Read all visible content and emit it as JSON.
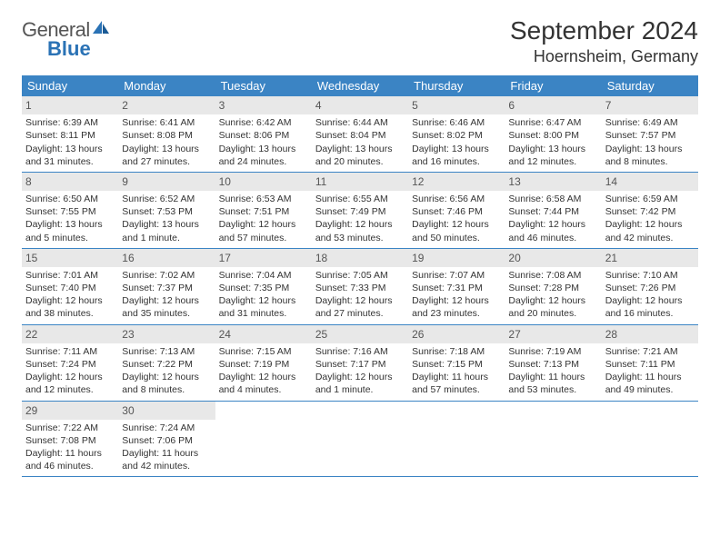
{
  "logo": {
    "general": "General",
    "blue": "Blue"
  },
  "title": "September 2024",
  "location": "Hoernsheim, Germany",
  "weekdays": [
    "Sunday",
    "Monday",
    "Tuesday",
    "Wednesday",
    "Thursday",
    "Friday",
    "Saturday"
  ],
  "colors": {
    "header_bg": "#3b84c4",
    "header_text": "#ffffff",
    "daynum_bg": "#e8e8e8",
    "logo_blue": "#2a72b5",
    "border": "#3b84c4"
  },
  "weeks": [
    [
      {
        "n": "1",
        "sr": "Sunrise: 6:39 AM",
        "ss": "Sunset: 8:11 PM",
        "d1": "Daylight: 13 hours",
        "d2": "and 31 minutes."
      },
      {
        "n": "2",
        "sr": "Sunrise: 6:41 AM",
        "ss": "Sunset: 8:08 PM",
        "d1": "Daylight: 13 hours",
        "d2": "and 27 minutes."
      },
      {
        "n": "3",
        "sr": "Sunrise: 6:42 AM",
        "ss": "Sunset: 8:06 PM",
        "d1": "Daylight: 13 hours",
        "d2": "and 24 minutes."
      },
      {
        "n": "4",
        "sr": "Sunrise: 6:44 AM",
        "ss": "Sunset: 8:04 PM",
        "d1": "Daylight: 13 hours",
        "d2": "and 20 minutes."
      },
      {
        "n": "5",
        "sr": "Sunrise: 6:46 AM",
        "ss": "Sunset: 8:02 PM",
        "d1": "Daylight: 13 hours",
        "d2": "and 16 minutes."
      },
      {
        "n": "6",
        "sr": "Sunrise: 6:47 AM",
        "ss": "Sunset: 8:00 PM",
        "d1": "Daylight: 13 hours",
        "d2": "and 12 minutes."
      },
      {
        "n": "7",
        "sr": "Sunrise: 6:49 AM",
        "ss": "Sunset: 7:57 PM",
        "d1": "Daylight: 13 hours",
        "d2": "and 8 minutes."
      }
    ],
    [
      {
        "n": "8",
        "sr": "Sunrise: 6:50 AM",
        "ss": "Sunset: 7:55 PM",
        "d1": "Daylight: 13 hours",
        "d2": "and 5 minutes."
      },
      {
        "n": "9",
        "sr": "Sunrise: 6:52 AM",
        "ss": "Sunset: 7:53 PM",
        "d1": "Daylight: 13 hours",
        "d2": "and 1 minute."
      },
      {
        "n": "10",
        "sr": "Sunrise: 6:53 AM",
        "ss": "Sunset: 7:51 PM",
        "d1": "Daylight: 12 hours",
        "d2": "and 57 minutes."
      },
      {
        "n": "11",
        "sr": "Sunrise: 6:55 AM",
        "ss": "Sunset: 7:49 PM",
        "d1": "Daylight: 12 hours",
        "d2": "and 53 minutes."
      },
      {
        "n": "12",
        "sr": "Sunrise: 6:56 AM",
        "ss": "Sunset: 7:46 PM",
        "d1": "Daylight: 12 hours",
        "d2": "and 50 minutes."
      },
      {
        "n": "13",
        "sr": "Sunrise: 6:58 AM",
        "ss": "Sunset: 7:44 PM",
        "d1": "Daylight: 12 hours",
        "d2": "and 46 minutes."
      },
      {
        "n": "14",
        "sr": "Sunrise: 6:59 AM",
        "ss": "Sunset: 7:42 PM",
        "d1": "Daylight: 12 hours",
        "d2": "and 42 minutes."
      }
    ],
    [
      {
        "n": "15",
        "sr": "Sunrise: 7:01 AM",
        "ss": "Sunset: 7:40 PM",
        "d1": "Daylight: 12 hours",
        "d2": "and 38 minutes."
      },
      {
        "n": "16",
        "sr": "Sunrise: 7:02 AM",
        "ss": "Sunset: 7:37 PM",
        "d1": "Daylight: 12 hours",
        "d2": "and 35 minutes."
      },
      {
        "n": "17",
        "sr": "Sunrise: 7:04 AM",
        "ss": "Sunset: 7:35 PM",
        "d1": "Daylight: 12 hours",
        "d2": "and 31 minutes."
      },
      {
        "n": "18",
        "sr": "Sunrise: 7:05 AM",
        "ss": "Sunset: 7:33 PM",
        "d1": "Daylight: 12 hours",
        "d2": "and 27 minutes."
      },
      {
        "n": "19",
        "sr": "Sunrise: 7:07 AM",
        "ss": "Sunset: 7:31 PM",
        "d1": "Daylight: 12 hours",
        "d2": "and 23 minutes."
      },
      {
        "n": "20",
        "sr": "Sunrise: 7:08 AM",
        "ss": "Sunset: 7:28 PM",
        "d1": "Daylight: 12 hours",
        "d2": "and 20 minutes."
      },
      {
        "n": "21",
        "sr": "Sunrise: 7:10 AM",
        "ss": "Sunset: 7:26 PM",
        "d1": "Daylight: 12 hours",
        "d2": "and 16 minutes."
      }
    ],
    [
      {
        "n": "22",
        "sr": "Sunrise: 7:11 AM",
        "ss": "Sunset: 7:24 PM",
        "d1": "Daylight: 12 hours",
        "d2": "and 12 minutes."
      },
      {
        "n": "23",
        "sr": "Sunrise: 7:13 AM",
        "ss": "Sunset: 7:22 PM",
        "d1": "Daylight: 12 hours",
        "d2": "and 8 minutes."
      },
      {
        "n": "24",
        "sr": "Sunrise: 7:15 AM",
        "ss": "Sunset: 7:19 PM",
        "d1": "Daylight: 12 hours",
        "d2": "and 4 minutes."
      },
      {
        "n": "25",
        "sr": "Sunrise: 7:16 AM",
        "ss": "Sunset: 7:17 PM",
        "d1": "Daylight: 12 hours",
        "d2": "and 1 minute."
      },
      {
        "n": "26",
        "sr": "Sunrise: 7:18 AM",
        "ss": "Sunset: 7:15 PM",
        "d1": "Daylight: 11 hours",
        "d2": "and 57 minutes."
      },
      {
        "n": "27",
        "sr": "Sunrise: 7:19 AM",
        "ss": "Sunset: 7:13 PM",
        "d1": "Daylight: 11 hours",
        "d2": "and 53 minutes."
      },
      {
        "n": "28",
        "sr": "Sunrise: 7:21 AM",
        "ss": "Sunset: 7:11 PM",
        "d1": "Daylight: 11 hours",
        "d2": "and 49 minutes."
      }
    ],
    [
      {
        "n": "29",
        "sr": "Sunrise: 7:22 AM",
        "ss": "Sunset: 7:08 PM",
        "d1": "Daylight: 11 hours",
        "d2": "and 46 minutes."
      },
      {
        "n": "30",
        "sr": "Sunrise: 7:24 AM",
        "ss": "Sunset: 7:06 PM",
        "d1": "Daylight: 11 hours",
        "d2": "and 42 minutes."
      },
      null,
      null,
      null,
      null,
      null
    ]
  ]
}
